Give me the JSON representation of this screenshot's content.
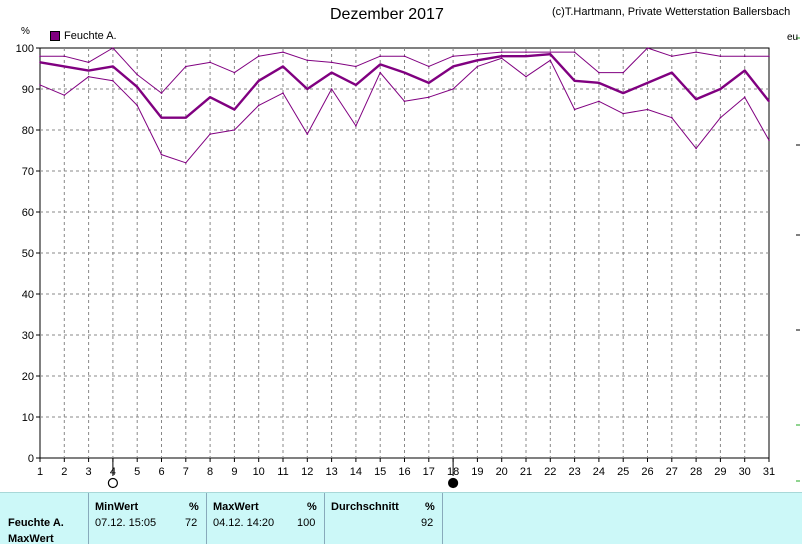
{
  "header": {
    "title": "Dezember 2017",
    "copyright": "(c)T.Hartmann, Private Wetterstation Ballersbach",
    "unit": "%",
    "right_edge_label": "eu"
  },
  "chart_data": {
    "type": "line",
    "title": "Dezember 2017",
    "ylabel": "%",
    "ylim": [
      0,
      100
    ],
    "yticks": [
      0,
      10,
      20,
      30,
      40,
      50,
      60,
      70,
      80,
      90,
      100
    ],
    "x": [
      1,
      2,
      3,
      4,
      5,
      6,
      7,
      8,
      9,
      10,
      11,
      12,
      13,
      14,
      15,
      16,
      17,
      18,
      19,
      20,
      21,
      22,
      23,
      24,
      25,
      26,
      27,
      28,
      29,
      30,
      31
    ],
    "grid": true,
    "legend": "top-left",
    "series": [
      {
        "name": "Feuchte A.",
        "role": "mean",
        "color": "#800080",
        "values": [
          96.5,
          95.5,
          94.5,
          95.5,
          90.5,
          83,
          83,
          88,
          85,
          92,
          95.5,
          90,
          94,
          91,
          96,
          94,
          91.5,
          95.5,
          97,
          98,
          98,
          98.5,
          92,
          91.5,
          89,
          91.5,
          94,
          87.5,
          90,
          94.5,
          87
        ]
      },
      {
        "role": "max",
        "color": "#800080",
        "values": [
          98,
          98,
          96.5,
          100,
          93.5,
          89,
          95.5,
          96.5,
          94,
          98,
          99,
          97,
          96.5,
          95.5,
          98,
          98,
          95.5,
          98,
          98.5,
          99,
          99,
          99,
          99,
          94,
          94,
          100,
          98,
          99,
          98,
          98,
          98
        ]
      },
      {
        "role": "min",
        "color": "#800080",
        "values": [
          91,
          88.5,
          93,
          92,
          86,
          74,
          72,
          79,
          80,
          86,
          89,
          79,
          90,
          81,
          94,
          87,
          88,
          90,
          95.5,
          97.5,
          93,
          97,
          85,
          87,
          84,
          85,
          83,
          75.5,
          83,
          88,
          77.5
        ]
      }
    ],
    "markers": [
      {
        "x": 4,
        "symbol": "open-circle"
      },
      {
        "x": 18,
        "symbol": "filled-circle"
      }
    ]
  },
  "stats": {
    "row_label": "Feuchte A.",
    "row_label2": "MaxWert",
    "min": {
      "header": "MinWert",
      "unit": "%",
      "datetime": "07.12.  15:05",
      "value": "72"
    },
    "max": {
      "header": "MaxWert",
      "unit": "%",
      "datetime": "04.12.  14:20",
      "value": "100"
    },
    "avg": {
      "header": "Durchschnitt",
      "unit": "%",
      "value": "92"
    }
  }
}
